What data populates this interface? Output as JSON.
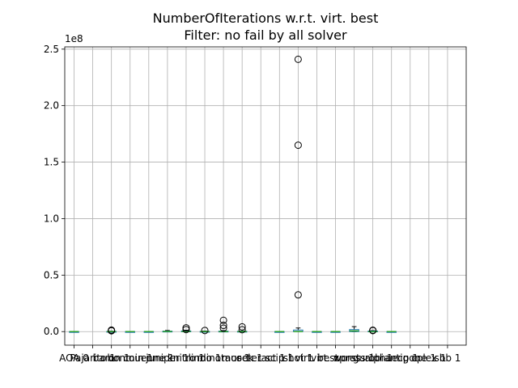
{
  "chart_data": {
    "type": "box",
    "title": [
      "NumberOfIterations w.r.t. virt. best",
      "Filter: no fail by all solver"
    ],
    "xlabel": "",
    "ylabel": "",
    "y_scale_label": "1e8",
    "ylim": [
      -12000000,
      252000000
    ],
    "yticks": [
      0,
      50000000,
      100000000,
      150000000,
      200000000,
      250000000
    ],
    "ytick_labels": [
      "0.0",
      "0.5",
      "1.0",
      "1.5",
      "2.0",
      "2.5"
    ],
    "grid": true,
    "colors": {
      "box": "#1f77b4",
      "median": "#2ca02c",
      "whisker": "#000000",
      "grid": "#b0b0b0"
    },
    "categories": [
      "AOA 0",
      "Pajarito 1",
      "baron 1",
      "bonmin 1",
      "couenne 1",
      "juniper 1",
      "knitro 1",
      "lindo 1",
      "minotaur 1",
      "mosek 1",
      "octeract 1",
      "scip 1",
      "shot 1",
      "virt. best",
      "virt. worst",
      "xpress 1",
      "gurobi 1",
      "alphaecp 1",
      "antigone 1",
      "cplex 1",
      "sbb 1"
    ],
    "series": [
      {
        "q1": 0,
        "median": 0,
        "q3": 0,
        "whislo": 0,
        "whishi": 0,
        "fliers": []
      },
      {
        "empty": true
      },
      {
        "q1": 0,
        "median": 0,
        "q3": 200000,
        "whislo": 0,
        "whishi": 400000,
        "fliers": [
          700000,
          1000000,
          1300000
        ]
      },
      {
        "q1": 0,
        "median": 0,
        "q3": 0,
        "whislo": 0,
        "whishi": 0,
        "fliers": []
      },
      {
        "q1": 0,
        "median": 0,
        "q3": 0,
        "whislo": 0,
        "whishi": 0,
        "fliers": []
      },
      {
        "q1": 0,
        "median": 100000,
        "q3": 400000,
        "whislo": 0,
        "whishi": 1000000,
        "fliers": []
      },
      {
        "q1": 0,
        "median": 100000,
        "q3": 600000,
        "whislo": 0,
        "whishi": 1200000,
        "fliers": [
          1800000,
          3300000
        ]
      },
      {
        "q1": 0,
        "median": 0,
        "q3": 200000,
        "whislo": 0,
        "whishi": 500000,
        "fliers": [
          1000000
        ]
      },
      {
        "q1": 0,
        "median": 0,
        "q3": 400000,
        "whislo": 0,
        "whishi": 900000,
        "fliers": [
          3000000,
          5500000,
          10000000
        ]
      },
      {
        "q1": 0,
        "median": 0,
        "q3": 300000,
        "whislo": 0,
        "whishi": 600000,
        "fliers": [
          1700000,
          4200000
        ]
      },
      {
        "empty": true
      },
      {
        "q1": 0,
        "median": 0,
        "q3": 0,
        "whislo": 0,
        "whishi": 0,
        "fliers": []
      },
      {
        "q1": 0,
        "median": 0,
        "q3": 1400000,
        "whislo": 0,
        "whishi": 3200000,
        "fliers": [
          32500000,
          165000000,
          241000000
        ]
      },
      {
        "q1": 0,
        "median": 0,
        "q3": 0,
        "whislo": 0,
        "whishi": 0,
        "fliers": []
      },
      {
        "q1": 0,
        "median": 0,
        "q3": 0,
        "whislo": 0,
        "whishi": 0,
        "fliers": []
      },
      {
        "q1": 0,
        "median": 600000,
        "q3": 1800000,
        "whislo": 0,
        "whishi": 4400000,
        "fliers": []
      },
      {
        "q1": 0,
        "median": 0,
        "q3": 500000,
        "whislo": 0,
        "whishi": 900000,
        "fliers": [
          900000,
          1200000
        ]
      },
      {
        "q1": 0,
        "median": 0,
        "q3": 0,
        "whislo": 0,
        "whishi": 0,
        "fliers": []
      },
      {
        "empty": true
      },
      {
        "empty": true
      },
      {
        "empty": true
      }
    ]
  }
}
